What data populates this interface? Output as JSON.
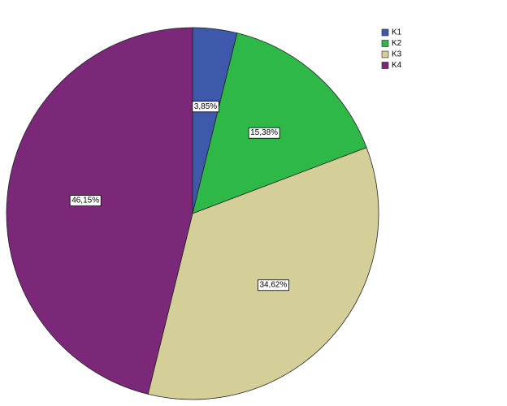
{
  "chart_data": {
    "type": "pie",
    "categories": [
      "K1",
      "K2",
      "K3",
      "K4"
    ],
    "values": [
      3.85,
      15.38,
      34.62,
      46.15
    ],
    "value_labels": [
      "3,85%",
      "15,38%",
      "34,62%",
      "46,15%"
    ],
    "colors": [
      "#3e58ac",
      "#2eb848",
      "#d4ce98",
      "#7b2878"
    ]
  }
}
